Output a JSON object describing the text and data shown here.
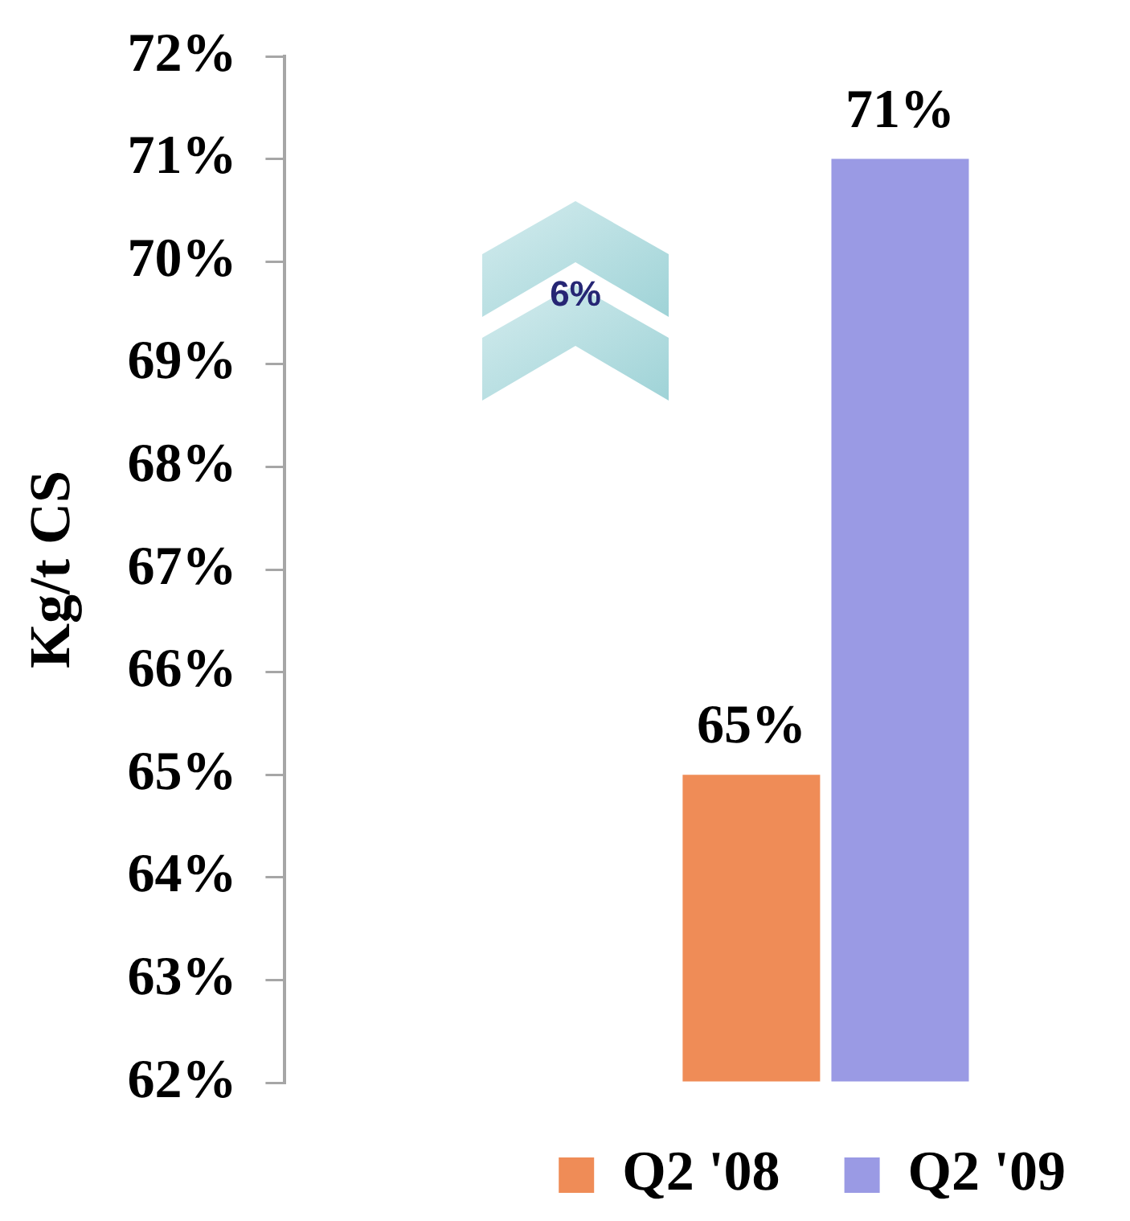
{
  "chart_data": {
    "type": "bar",
    "categories": [
      null
    ],
    "series": [
      {
        "name": "Q2 '08",
        "color": "#ef8c57",
        "values": [
          65
        ],
        "value_labels": [
          "65%"
        ]
      },
      {
        "name": "Q2 '09",
        "color": "#9a9ae4",
        "values": [
          71
        ],
        "value_labels": [
          "71%"
        ]
      }
    ],
    "ylabel": "Kg/t CS",
    "ylim": [
      62,
      72
    ],
    "yticks": [
      {
        "value": 62,
        "label": "62%"
      },
      {
        "value": 63,
        "label": "63%"
      },
      {
        "value": 64,
        "label": "64%"
      },
      {
        "value": 65,
        "label": "65%"
      },
      {
        "value": 66,
        "label": "66%"
      },
      {
        "value": 67,
        "label": "67%"
      },
      {
        "value": 68,
        "label": "68%"
      },
      {
        "value": 69,
        "label": "69%"
      },
      {
        "value": 70,
        "label": "70%"
      },
      {
        "value": 71,
        "label": "71%"
      },
      {
        "value": 72,
        "label": "72%"
      }
    ],
    "legend": "bottom right",
    "annotations": [
      "6%"
    ]
  }
}
